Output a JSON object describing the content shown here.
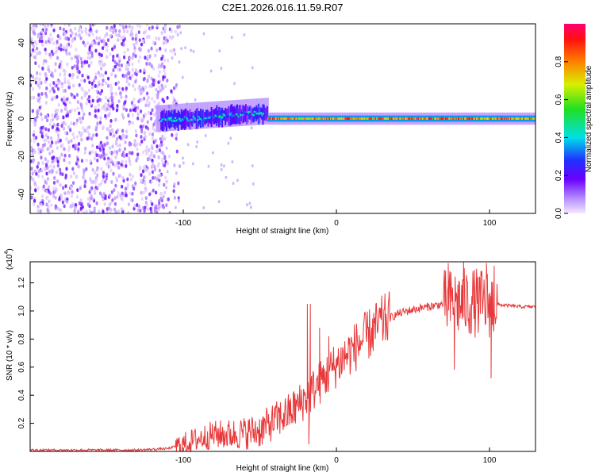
{
  "title": "C2E1.2026.016.11.59.R07",
  "chart_data": [
    {
      "type": "heatmap",
      "name": "spectrogram",
      "xlabel": "Height of straight line (km)",
      "ylabel": "Frequency (Hz)",
      "xlim": [
        -200,
        130
      ],
      "ylim": [
        -50,
        50
      ],
      "xticks": [
        -100,
        0,
        100
      ],
      "xtick_labels": [
        "-100",
        "0",
        "100"
      ],
      "yticks": [
        -40,
        -20,
        0,
        20,
        40
      ],
      "ytick_labels": [
        "-40",
        "-20",
        "0",
        "20",
        "40"
      ],
      "colorbar": {
        "label": "Normalized spectral amplitude",
        "range": [
          0,
          1
        ],
        "ticks": [
          0.0,
          0.2,
          0.4,
          0.6,
          0.8
        ],
        "tick_labels": [
          "0.0",
          "0.2",
          "0.4",
          "0.6",
          "0.8"
        ]
      },
      "regions": [
        {
          "x": [
            -200,
            -110
          ],
          "description": "broadband noise",
          "amplitude": [
            0.02,
            0.2
          ]
        },
        {
          "x": [
            -115,
            -45
          ],
          "band_freq": [
            -6,
            8
          ],
          "amplitude": [
            0.2,
            0.5
          ]
        },
        {
          "x": [
            -45,
            130
          ],
          "band_freq": [
            -2,
            2
          ],
          "amplitude": [
            0.6,
            1.0
          ]
        }
      ]
    },
    {
      "type": "line",
      "name": "snr",
      "xlabel": "Height of straight line (km)",
      "ylabel": "SNR (10 * v/v)",
      "y_multiplier": "(x10",
      "y_multiplier_exp": "4",
      "y_multiplier_close": ")",
      "xlim": [
        -200,
        130
      ],
      "ylim": [
        0,
        1.35
      ],
      "xticks": [
        -100,
        0,
        100
      ],
      "xtick_labels": [
        "-100",
        "0",
        "100"
      ],
      "yticks": [
        0.2,
        0.4,
        0.6,
        0.8,
        1.0,
        1.2
      ],
      "ytick_labels": [
        "0.2",
        "0.4",
        "0.6",
        "0.8",
        "1.0",
        "1.2"
      ],
      "color": "#e8383a",
      "series": [
        {
          "name": "SNR",
          "x": [
            -200,
            -160,
            -130,
            -110,
            -100,
            -90,
            -80,
            -70,
            -60,
            -50,
            -40,
            -30,
            -20,
            -10,
            0,
            10,
            20,
            30,
            40,
            50,
            60,
            70,
            80,
            90,
            100,
            110,
            120,
            130
          ],
          "y": [
            0.01,
            0.01,
            0.01,
            0.02,
            0.05,
            0.09,
            0.12,
            0.12,
            0.13,
            0.15,
            0.22,
            0.28,
            0.38,
            0.5,
            0.62,
            0.72,
            0.82,
            0.92,
            0.98,
            1.01,
            1.03,
            1.05,
            1.06,
            1.06,
            1.05,
            1.04,
            1.03,
            1.03
          ]
        }
      ],
      "spikes": [
        {
          "x": -19,
          "y": 1.05
        },
        {
          "x": -17,
          "y": 1.05
        },
        {
          "x": -18,
          "y": 0.05
        },
        {
          "x": -11,
          "y": 0.88
        },
        {
          "x": -5,
          "y": 0.82
        },
        {
          "x": 73,
          "y": 1.34
        },
        {
          "x": 83,
          "y": 1.35
        },
        {
          "x": 98,
          "y": 1.34
        },
        {
          "x": 103,
          "y": 1.32
        },
        {
          "x": 101,
          "y": 0.52
        },
        {
          "x": 77,
          "y": 0.58
        }
      ]
    }
  ]
}
